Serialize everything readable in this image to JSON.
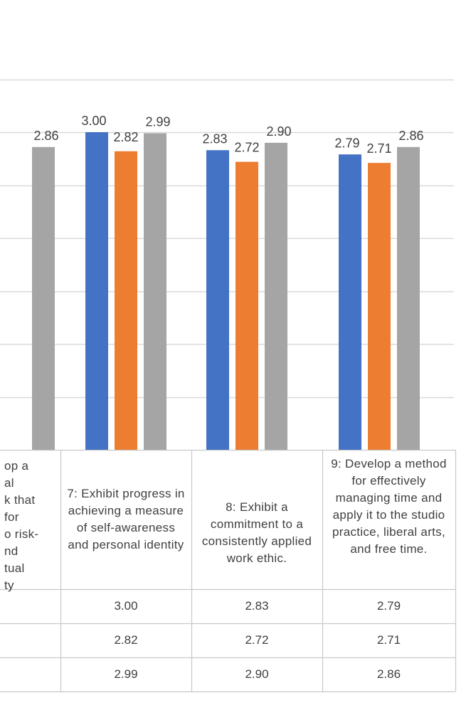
{
  "chart_data": {
    "type": "bar",
    "categories": [
      "op a\nal\nk that\nfor\no risk-\nnd\ntual\nty",
      "7: Exhibit progress in achieving a measure of self-awareness and personal identity",
      "8: Exhibit a commitment to a consistently applied work ethic.",
      "9: Develop a method for effectively managing time and apply it to the studio practice, liberal arts, and free time."
    ],
    "series": [
      {
        "color": "#4472C4",
        "values": [
          null,
          3.0,
          2.83,
          2.79
        ],
        "labels": [
          "",
          "3.00",
          "2.83",
          "2.79"
        ]
      },
      {
        "color": "#ED7D31",
        "values": [
          null,
          2.82,
          2.72,
          2.71
        ],
        "labels": [
          "",
          "2.82",
          "2.72",
          "2.71"
        ]
      },
      {
        "color": "#A5A5A5",
        "values": [
          2.86,
          2.99,
          2.9,
          2.86
        ],
        "labels": [
          "2.86",
          "2.99",
          "2.90",
          "2.86"
        ]
      }
    ],
    "ylim": [
      0,
      3.5
    ],
    "grid": true,
    "data_table": true
  },
  "colors": {
    "grid": "#d9d9d9",
    "text": "#404040"
  }
}
